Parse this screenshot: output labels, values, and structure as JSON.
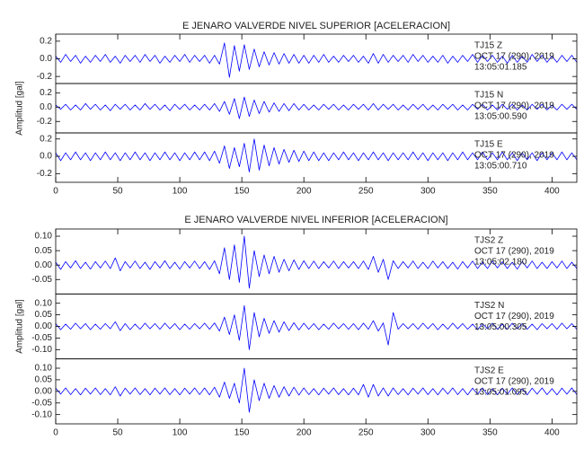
{
  "chart_data": [
    {
      "type": "line",
      "title": "E JENARO VALVERDE NIVEL SUPERIOR [ACELERACION]",
      "y_label": "Amplitud [gal]",
      "xlim": [
        0,
        420
      ],
      "xticks": [
        0,
        50,
        100,
        150,
        200,
        250,
        300,
        350,
        400
      ],
      "x": [
        0,
        4,
        8,
        12,
        16,
        20,
        24,
        28,
        32,
        36,
        40,
        44,
        48,
        52,
        56,
        60,
        64,
        68,
        72,
        76,
        80,
        84,
        88,
        92,
        96,
        100,
        104,
        108,
        112,
        116,
        120,
        124,
        128,
        132,
        136,
        140,
        144,
        148,
        152,
        156,
        160,
        164,
        168,
        172,
        176,
        180,
        184,
        188,
        192,
        196,
        200,
        204,
        208,
        212,
        216,
        220,
        224,
        228,
        232,
        236,
        240,
        244,
        248,
        252,
        256,
        260,
        264,
        268,
        272,
        276,
        280,
        284,
        288,
        292,
        296,
        300,
        304,
        308,
        312,
        316,
        320,
        324,
        328,
        332,
        336,
        340,
        344,
        348,
        352,
        356,
        360,
        364,
        368,
        372,
        376,
        380,
        384,
        388,
        392,
        396,
        400,
        404,
        408,
        412,
        416,
        420
      ],
      "series": [
        {
          "name": "TJ15 Z",
          "date": "OCT 17 (290), 2019",
          "time": "13:05:01.185",
          "color": "#0000ff",
          "ylim": [
            -0.28,
            0.28
          ],
          "yticks": [
            -0.2,
            {
              "value": 0,
              "label": "0.0"
            },
            0.2
          ],
          "values": [
            0.03,
            -0.04,
            0.05,
            -0.03,
            0.04,
            -0.05,
            0.03,
            -0.04,
            0.04,
            -0.03,
            0.05,
            -0.04,
            0.03,
            -0.05,
            0.04,
            -0.03,
            0.04,
            -0.04,
            0.05,
            -0.03,
            0.04,
            -0.05,
            0.03,
            -0.04,
            0.04,
            -0.03,
            0.05,
            -0.04,
            0.04,
            -0.03,
            0.04,
            -0.05,
            0.04,
            -0.06,
            0.18,
            -0.21,
            0.15,
            -0.14,
            0.16,
            -0.12,
            0.11,
            -0.09,
            0.08,
            -0.07,
            0.07,
            -0.06,
            0.06,
            -0.05,
            0.05,
            -0.05,
            0.04,
            -0.05,
            0.04,
            -0.04,
            0.05,
            -0.04,
            0.03,
            -0.04,
            0.04,
            -0.03,
            0.04,
            -0.04,
            0.03,
            -0.05,
            0.06,
            -0.05,
            0.05,
            -0.04,
            0.04,
            -0.03,
            0.04,
            -0.04,
            0.05,
            -0.03,
            0.04,
            -0.04,
            0.03,
            -0.04,
            0.04,
            -0.05,
            0.03,
            -0.04,
            0.04,
            -0.03,
            0.05,
            -0.04,
            0.04,
            -0.03,
            0.04,
            -0.04,
            0.03,
            -0.05,
            0.04,
            -0.04,
            0.03,
            -0.04,
            0.05,
            -0.03,
            0.04,
            -0.04,
            0.03,
            -0.04,
            0.04,
            -0.03,
            0.04,
            -0.04
          ]
        },
        {
          "name": "TJ15 N",
          "date": "OCT 17 (290), 2019",
          "time": "13:05:00.590",
          "color": "#0000ff",
          "ylim": [
            -0.36,
            0.33
          ],
          "yticks": [
            -0.2,
            {
              "value": 0,
              "label": "0.0"
            },
            0.2
          ],
          "values": [
            0.03,
            -0.03,
            0.04,
            -0.04,
            0.03,
            -0.04,
            0.05,
            -0.03,
            0.04,
            -0.04,
            0.03,
            -0.05,
            0.04,
            -0.03,
            0.04,
            -0.04,
            0.03,
            -0.04,
            0.05,
            -0.03,
            0.04,
            -0.04,
            0.03,
            -0.05,
            0.04,
            -0.03,
            0.04,
            -0.04,
            0.03,
            -0.04,
            0.04,
            -0.04,
            0.05,
            -0.06,
            0.08,
            -0.1,
            0.12,
            -0.16,
            0.14,
            -0.13,
            0.1,
            -0.09,
            0.08,
            -0.07,
            0.06,
            -0.06,
            0.05,
            -0.05,
            0.05,
            -0.04,
            0.04,
            -0.04,
            0.03,
            -0.04,
            0.04,
            -0.03,
            0.04,
            -0.04,
            0.03,
            -0.04,
            0.04,
            -0.03,
            0.04,
            -0.04,
            0.05,
            -0.04,
            0.04,
            -0.03,
            0.04,
            -0.04,
            0.03,
            -0.04,
            0.04,
            -0.03,
            0.04,
            -0.04,
            0.03,
            -0.04,
            0.04,
            -0.03,
            0.04,
            -0.04,
            0.03,
            -0.04,
            0.04,
            -0.03,
            0.04,
            -0.04,
            0.03,
            -0.04,
            0.04,
            -0.03,
            0.04,
            -0.04,
            0.03,
            -0.04,
            0.04,
            -0.03,
            0.04,
            -0.04,
            0.03,
            -0.04,
            0.04,
            -0.03,
            0.04,
            -0.03
          ]
        },
        {
          "name": "TJ15 E",
          "date": "OCT 17 (290), 2019",
          "time": "13:05:00.710",
          "color": "#0000ff",
          "ylim": [
            -0.3,
            0.27
          ],
          "yticks": [
            -0.2,
            {
              "value": 0,
              "label": "0.0"
            },
            0.2
          ],
          "values": [
            0.04,
            -0.05,
            0.04,
            -0.04,
            0.05,
            -0.04,
            0.04,
            -0.05,
            0.04,
            -0.04,
            0.05,
            -0.04,
            0.04,
            -0.05,
            0.04,
            -0.04,
            0.05,
            -0.04,
            0.04,
            -0.05,
            0.04,
            -0.04,
            0.05,
            -0.04,
            0.04,
            -0.05,
            0.04,
            -0.04,
            0.05,
            -0.04,
            0.05,
            -0.05,
            0.06,
            -0.08,
            0.12,
            -0.14,
            0.1,
            -0.12,
            0.15,
            -0.18,
            0.2,
            -0.16,
            0.13,
            -0.11,
            0.1,
            -0.09,
            0.08,
            -0.07,
            0.07,
            -0.06,
            0.06,
            -0.05,
            0.05,
            -0.05,
            0.04,
            -0.05,
            0.04,
            -0.04,
            0.05,
            -0.04,
            0.04,
            -0.05,
            0.04,
            -0.04,
            0.05,
            -0.04,
            0.04,
            -0.05,
            0.04,
            -0.04,
            0.04,
            -0.04,
            0.05,
            -0.04,
            0.04,
            -0.05,
            0.04,
            -0.04,
            0.04,
            -0.05,
            0.04,
            -0.04,
            0.05,
            -0.04,
            0.04,
            -0.04,
            0.05,
            -0.04,
            0.04,
            -0.04,
            0.05,
            -0.04,
            0.04,
            -0.05,
            0.04,
            -0.04,
            0.04,
            -0.05,
            0.04,
            -0.04,
            0.04,
            -0.04,
            0.05,
            -0.04,
            0.04,
            -0.04
          ]
        }
      ]
    },
    {
      "type": "line",
      "title": "E JENARO VALVERDE NIVEL INFERIOR [ACELERACION]",
      "y_label": "Amplitud [gal]",
      "xlim": [
        0,
        420
      ],
      "xticks": [
        0,
        50,
        100,
        150,
        200,
        250,
        300,
        350,
        400
      ],
      "x": [
        0,
        4,
        8,
        12,
        16,
        20,
        24,
        28,
        32,
        36,
        40,
        44,
        48,
        52,
        56,
        60,
        64,
        68,
        72,
        76,
        80,
        84,
        88,
        92,
        96,
        100,
        104,
        108,
        112,
        116,
        120,
        124,
        128,
        132,
        136,
        140,
        144,
        148,
        152,
        156,
        160,
        164,
        168,
        172,
        176,
        180,
        184,
        188,
        192,
        196,
        200,
        204,
        208,
        212,
        216,
        220,
        224,
        228,
        232,
        236,
        240,
        244,
        248,
        252,
        256,
        260,
        264,
        268,
        272,
        276,
        280,
        284,
        288,
        292,
        296,
        300,
        304,
        308,
        312,
        316,
        320,
        324,
        328,
        332,
        336,
        340,
        344,
        348,
        352,
        356,
        360,
        364,
        368,
        372,
        376,
        380,
        384,
        388,
        392,
        396,
        400,
        404,
        408,
        412,
        416,
        420
      ],
      "series": [
        {
          "name": "TJS2 Z",
          "date": "OCT 17 (290), 2019",
          "time": "13:05:02.180",
          "color": "#0000ff",
          "ylim": [
            -0.1,
            0.125
          ],
          "yticks": [
            -0.05,
            {
              "value": 0,
              "label": "0.00"
            },
            0.05,
            {
              "value": 0.1,
              "label": "0.10"
            }
          ],
          "values": [
            0.01,
            -0.015,
            0.012,
            -0.01,
            0.015,
            -0.012,
            0.01,
            -0.014,
            0.012,
            -0.01,
            0.014,
            -0.012,
            0.025,
            -0.02,
            0.012,
            -0.01,
            0.014,
            -0.012,
            0.01,
            -0.015,
            0.012,
            -0.01,
            0.015,
            -0.012,
            0.01,
            -0.014,
            0.012,
            -0.01,
            0.014,
            -0.012,
            0.012,
            -0.015,
            0.015,
            -0.03,
            0.06,
            -0.05,
            0.07,
            -0.06,
            0.1,
            -0.08,
            0.05,
            -0.04,
            0.035,
            -0.03,
            0.03,
            -0.025,
            0.02,
            -0.02,
            0.018,
            -0.015,
            0.015,
            -0.012,
            0.014,
            -0.012,
            0.012,
            -0.01,
            0.014,
            -0.012,
            0.012,
            -0.01,
            0.012,
            -0.012,
            0.014,
            -0.015,
            0.03,
            -0.025,
            0.02,
            -0.05,
            0.015,
            -0.012,
            0.012,
            -0.01,
            0.014,
            -0.012,
            0.01,
            -0.012,
            0.014,
            -0.01,
            0.012,
            -0.012,
            0.01,
            -0.014,
            0.012,
            -0.01,
            0.014,
            -0.012,
            0.01,
            -0.012,
            0.014,
            -0.01,
            0.012,
            -0.012,
            0.01,
            -0.014,
            0.012,
            -0.01,
            0.014,
            -0.012,
            0.01,
            -0.012,
            0.012,
            -0.01,
            0.014,
            -0.012,
            0.01,
            -0.012
          ]
        },
        {
          "name": "TJS2 N",
          "date": "OCT 17 (290), 2019",
          "time": "13:05:00.305",
          "color": "#0000ff",
          "ylim": [
            -0.14,
            0.14
          ],
          "yticks": [
            {
              "value": -0.1,
              "label": "-0.10"
            },
            -0.05,
            {
              "value": 0,
              "label": "0.00"
            },
            0.05,
            {
              "value": 0.1,
              "label": "0.10"
            }
          ],
          "values": [
            0.012,
            -0.014,
            0.01,
            -0.012,
            0.014,
            -0.01,
            0.012,
            -0.014,
            0.01,
            -0.012,
            0.012,
            -0.01,
            0.02,
            -0.018,
            0.012,
            -0.014,
            0.01,
            -0.012,
            0.014,
            -0.01,
            0.012,
            -0.012,
            0.014,
            -0.01,
            0.012,
            -0.014,
            0.01,
            -0.012,
            0.012,
            -0.01,
            0.014,
            -0.012,
            0.015,
            -0.02,
            0.04,
            -0.035,
            0.05,
            -0.06,
            0.09,
            -0.1,
            0.06,
            -0.045,
            0.035,
            -0.03,
            0.025,
            -0.025,
            0.02,
            -0.018,
            0.016,
            -0.015,
            0.014,
            -0.012,
            0.012,
            -0.014,
            0.01,
            -0.012,
            0.014,
            -0.01,
            0.012,
            -0.012,
            0.012,
            -0.014,
            0.014,
            -0.012,
            0.025,
            -0.02,
            0.015,
            -0.08,
            0.06,
            -0.012,
            0.012,
            -0.01,
            0.012,
            -0.012,
            0.014,
            -0.01,
            0.012,
            -0.014,
            0.01,
            -0.012,
            0.014,
            -0.01,
            0.012,
            -0.012,
            0.01,
            -0.014,
            0.012,
            -0.01,
            0.014,
            -0.012,
            0.01,
            -0.012,
            0.014,
            -0.01,
            0.012,
            -0.012,
            0.01,
            -0.014,
            0.012,
            -0.01,
            0.012,
            -0.012,
            0.014,
            -0.01,
            0.012,
            -0.012
          ]
        },
        {
          "name": "TJS2 E",
          "date": "OCT 17 (290), 2019",
          "time": "13:05:01.095",
          "color": "#0000ff",
          "ylim": [
            -0.14,
            0.14
          ],
          "yticks": [
            {
              "value": -0.1,
              "label": "-0.10"
            },
            -0.05,
            {
              "value": 0,
              "label": "0.00"
            },
            0.05,
            {
              "value": 0.1,
              "label": "0.10"
            }
          ],
          "values": [
            0.014,
            -0.012,
            0.015,
            -0.014,
            0.012,
            -0.015,
            0.014,
            -0.012,
            0.015,
            -0.014,
            0.012,
            -0.015,
            0.02,
            -0.02,
            0.014,
            -0.012,
            0.015,
            -0.014,
            0.012,
            -0.015,
            0.014,
            -0.012,
            0.015,
            -0.014,
            0.012,
            -0.015,
            0.014,
            -0.012,
            0.015,
            -0.014,
            0.015,
            -0.015,
            0.018,
            -0.025,
            0.04,
            -0.03,
            0.035,
            -0.05,
            0.1,
            -0.09,
            0.05,
            -0.04,
            0.035,
            -0.03,
            0.025,
            -0.025,
            0.02,
            -0.02,
            0.018,
            -0.016,
            0.015,
            -0.014,
            0.012,
            -0.015,
            0.014,
            -0.012,
            0.015,
            -0.014,
            0.012,
            -0.015,
            0.014,
            -0.015,
            0.03,
            -0.025,
            0.03,
            -0.02,
            0.015,
            -0.02,
            0.015,
            -0.014,
            0.012,
            -0.015,
            0.014,
            -0.012,
            0.015,
            -0.014,
            0.012,
            -0.015,
            0.014,
            -0.012,
            0.015,
            -0.014,
            0.012,
            -0.015,
            0.014,
            -0.012,
            0.015,
            -0.014,
            0.012,
            -0.015,
            0.014,
            -0.012,
            0.015,
            -0.014,
            0.012,
            -0.015,
            0.014,
            -0.012,
            0.015,
            -0.014,
            0.012,
            -0.015,
            0.014,
            -0.012,
            0.015,
            -0.014
          ]
        }
      ]
    }
  ]
}
